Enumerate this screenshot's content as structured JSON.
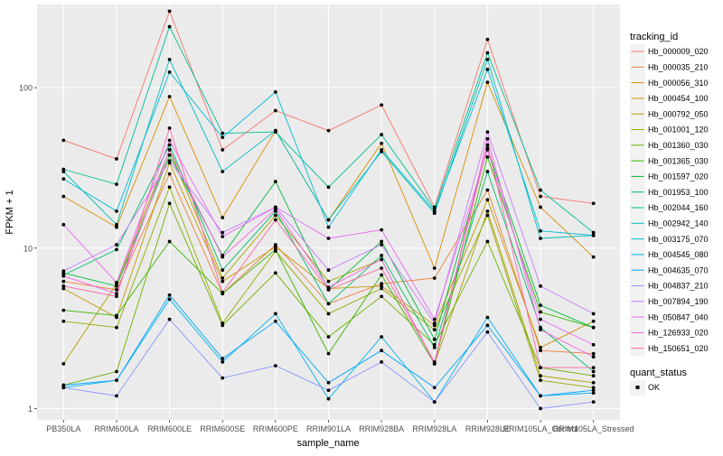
{
  "chart_data": {
    "type": "line",
    "xlabel": "sample_name",
    "ylabel": "FPKM + 1",
    "yscale": "log",
    "ylim": [
      0.85,
      330
    ],
    "yticks": [
      1,
      10,
      100
    ],
    "ytick_labels": [
      "1",
      "10",
      "100"
    ],
    "grid": true,
    "legend_position": "right",
    "categories": [
      "PB350LA",
      "RRIM600LA",
      "RRIM600LE",
      "RRIM600SE",
      "RRIM600PE",
      "RRIM901LA",
      "RRIM928BA",
      "RRIM928LA",
      "RRIM928LE",
      "RRIM105LA_Control",
      "RRIM105LA_Stressed"
    ],
    "legend_title": "tracking_id",
    "shape_legend": {
      "title": "quant_status",
      "items": [
        "OK"
      ]
    },
    "series": [
      {
        "name": "Hb_000009_020",
        "color": "#F8766D",
        "values": [
          47,
          36,
          300,
          41,
          72,
          54,
          78,
          18,
          200,
          21,
          19
        ]
      },
      {
        "name": "Hb_000035_210",
        "color": "#EC823C",
        "values": [
          6.2,
          5.5,
          29,
          5.2,
          10.5,
          4.5,
          6,
          6.5,
          23,
          2.3,
          2.2
        ]
      },
      {
        "name": "Hb_000056_310",
        "color": "#DC8D00",
        "values": [
          21,
          13.5,
          88,
          15.5,
          54,
          15,
          45,
          7.5,
          108,
          18,
          8.8
        ]
      },
      {
        "name": "Hb_000454_100",
        "color": "#C79800",
        "values": [
          5.6,
          3.7,
          34,
          6.2,
          10.2,
          5.6,
          5.8,
          3.3,
          20,
          2.4,
          3.5
        ]
      },
      {
        "name": "Hb_000792_050",
        "color": "#AFA100",
        "values": [
          1.9,
          6,
          41,
          6.5,
          16,
          6.2,
          8.5,
          1.9,
          17,
          1.6,
          1.45
        ]
      },
      {
        "name": "Hb_001001_120",
        "color": "#93AA00",
        "values": [
          3.5,
          3.2,
          24,
          3.4,
          9.6,
          3.9,
          5.6,
          3.1,
          16,
          1.5,
          1.35
        ]
      },
      {
        "name": "Hb_001360_030",
        "color": "#6FB000",
        "values": [
          1.4,
          1.7,
          19,
          3.3,
          7,
          2.8,
          5,
          2.5,
          11,
          1.8,
          1.6
        ]
      },
      {
        "name": "Hb_001365_030",
        "color": "#36B600",
        "values": [
          4.1,
          3.8,
          11,
          5.2,
          9.8,
          2.2,
          6.8,
          1.9,
          37,
          4,
          3.2
        ]
      },
      {
        "name": "Hb_001597_020",
        "color": "#00BA38",
        "values": [
          7,
          5.8,
          38,
          9,
          26,
          5.5,
          11,
          2.7,
          42,
          4.4,
          3.2
        ]
      },
      {
        "name": "Hb_001953_100",
        "color": "#00BE6F",
        "values": [
          6.8,
          9.8,
          44,
          7.3,
          17,
          4.5,
          9,
          2.4,
          30,
          3.2,
          1.7
        ]
      },
      {
        "name": "Hb_002044_160",
        "color": "#00BF96",
        "values": [
          31,
          25,
          240,
          52,
          53,
          24,
          51,
          17.5,
          165,
          23,
          12.5
        ]
      },
      {
        "name": "Hb_002942_140",
        "color": "#00C0B8",
        "values": [
          30,
          14,
          150,
          30,
          54,
          15,
          40,
          16.5,
          150,
          11.5,
          12
        ]
      },
      {
        "name": "Hb_003175_070",
        "color": "#00BCD7",
        "values": [
          27,
          17,
          125,
          49,
          94,
          13.5,
          41,
          17,
          130,
          12.8,
          12
        ]
      },
      {
        "name": "Hb_004545_080",
        "color": "#00B4EF",
        "values": [
          1.35,
          1.5,
          4.8,
          1.95,
          3.9,
          1.15,
          2.8,
          1.1,
          3.7,
          1.2,
          1.25
        ]
      },
      {
        "name": "Hb_004635_070",
        "color": "#00A5FF",
        "values": [
          1.4,
          1.5,
          5.1,
          2.05,
          3.5,
          1.45,
          2.3,
          1.35,
          3.3,
          1.2,
          1.3
        ]
      },
      {
        "name": "Hb_004837_210",
        "color": "#8C96FF",
        "values": [
          1.35,
          1.2,
          3.6,
          1.55,
          1.85,
          1.3,
          1.95,
          1.1,
          3,
          1.0,
          1.1
        ]
      },
      {
        "name": "Hb_007894_190",
        "color": "#C77CFF",
        "values": [
          7.2,
          10.5,
          35,
          12.5,
          18,
          7.3,
          10.5,
          3.4,
          53,
          5.8,
          3.9
        ]
      },
      {
        "name": "Hb_050847_040",
        "color": "#E76BF3",
        "values": [
          14,
          6.1,
          47,
          11.8,
          18,
          11.5,
          13,
          3.6,
          41,
          3.6,
          2.5
        ]
      },
      {
        "name": "Hb_126933_020",
        "color": "#F763E0",
        "values": [
          6.7,
          5.2,
          41,
          8.8,
          17.5,
          5.7,
          8.5,
          1.9,
          48,
          3.1,
          2.1
        ]
      },
      {
        "name": "Hb_150651_020",
        "color": "#FF66A8",
        "values": [
          5.8,
          5,
          56,
          5.3,
          15,
          5.5,
          7.5,
          1.95,
          44,
          1.8,
          1.8
        ]
      }
    ]
  }
}
